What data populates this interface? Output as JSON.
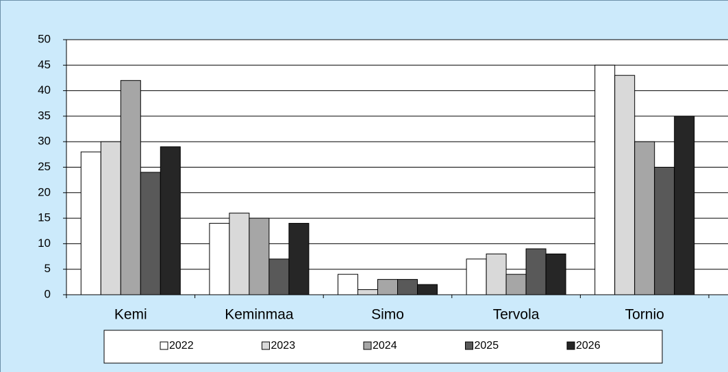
{
  "chart_data": {
    "type": "bar",
    "categories": [
      "Kemi",
      "Keminmaa",
      "Simo",
      "Tervola",
      "Tornio"
    ],
    "series": [
      {
        "name": "2022",
        "color": "#ffffff",
        "values": [
          28,
          14,
          4,
          7,
          45
        ]
      },
      {
        "name": "2023",
        "color": "#d9d9d9",
        "values": [
          30,
          16,
          1,
          8,
          43
        ]
      },
      {
        "name": "2024",
        "color": "#a6a6a6",
        "values": [
          42,
          15,
          3,
          4,
          30
        ]
      },
      {
        "name": "2025",
        "color": "#595959",
        "values": [
          24,
          7,
          3,
          9,
          25
        ]
      },
      {
        "name": "2026",
        "color": "#262626",
        "values": [
          29,
          14,
          2,
          8,
          35
        ]
      }
    ],
    "ylim": [
      0,
      50
    ],
    "yticks": [
      0,
      5,
      10,
      15,
      20,
      25,
      30,
      35,
      40,
      45,
      50
    ],
    "grid": true,
    "legend": "bottom"
  }
}
